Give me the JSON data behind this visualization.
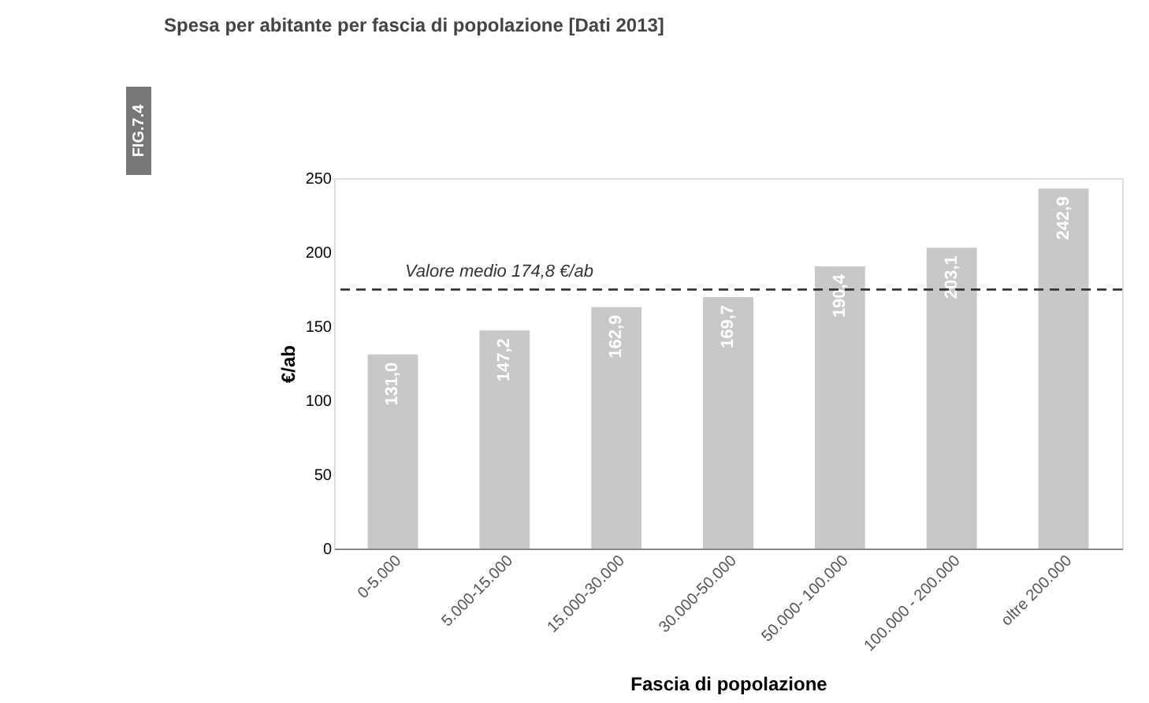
{
  "chart_data": {
    "type": "bar",
    "title": "Spesa per abitante per fascia di popolazione [Dati 2013]",
    "annotations": [
      "FIG.7.4"
    ],
    "xlabel": "Fascia di popolazione",
    "ylabel": "€/ab",
    "categories": [
      "0-5.000",
      "5.000-15.000",
      "15.000-30.000",
      "30.000-50.000",
      "50.000- 100.000",
      "100.000 - 200.000",
      "oltre 200.000"
    ],
    "values": [
      131.0,
      147.2,
      162.9,
      169.7,
      190.4,
      203.1,
      242.9
    ],
    "value_labels": [
      "131,0",
      "147,2",
      "162,9",
      "169,7",
      "190,4",
      "203,1",
      "242,9"
    ],
    "color": "#c8c8c8",
    "ylim": [
      0,
      250
    ],
    "yticks": [
      0,
      50,
      100,
      150,
      200,
      250
    ],
    "grid": false,
    "ref_lines": [
      {
        "axis": "y",
        "value": 174.8,
        "label": "Valore medio 174,8 €/ab",
        "color": "#333333",
        "line_style": "dashed"
      }
    ]
  }
}
